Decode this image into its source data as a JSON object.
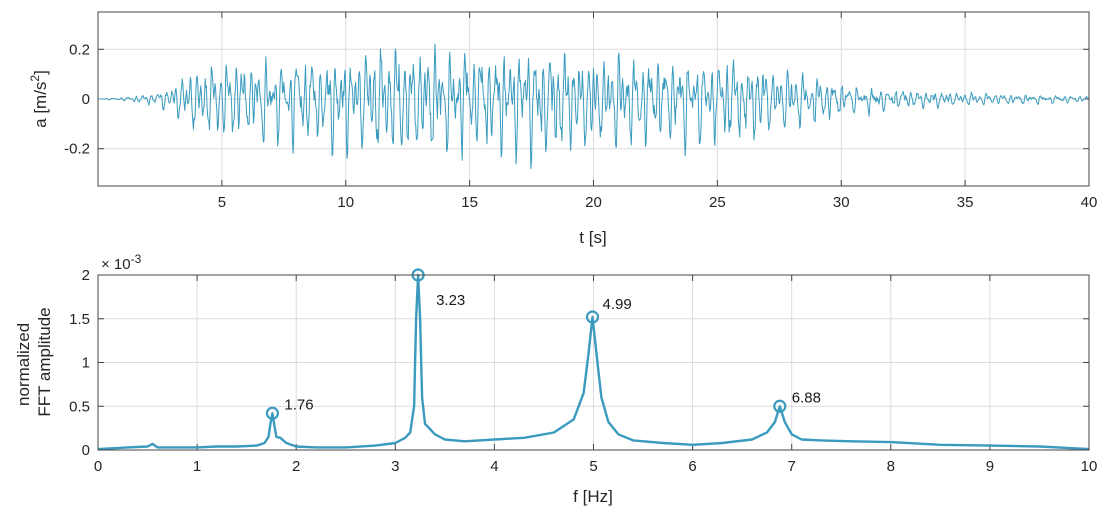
{
  "colors": {
    "series": "#3a9bbf",
    "grid": "#dcdcdc",
    "axis": "#444444",
    "background": "#ffffff"
  },
  "chart_data": [
    {
      "type": "line",
      "title": "",
      "xlabel": "t [s]",
      "ylabel": "a [m/s",
      "ylabel_super": "2",
      "ylabel_close": "]",
      "xlim": [
        0,
        40
      ],
      "ylim": [
        -0.35,
        0.35
      ],
      "xticks": [
        5,
        10,
        15,
        20,
        25,
        30,
        35,
        40
      ],
      "xtick_labels": [
        "5",
        "10",
        "15",
        "20",
        "25",
        "30",
        "35",
        "40"
      ],
      "yticks": [
        -0.2,
        0,
        0.2
      ],
      "ytick_labels": [
        "-0.2",
        "0",
        "0.2"
      ],
      "grid": true,
      "series": [
        {
          "envelope": {
            "t": [
              0,
              1,
              2,
              3,
              3.5,
              5,
              8,
              10,
              12,
              14,
              16,
              18,
              20,
              22,
              24,
              26,
              28,
              30,
              32,
              35,
              40
            ],
            "amp": [
              0.0,
              0.004,
              0.012,
              0.03,
              0.07,
              0.09,
              0.1,
              0.11,
              0.13,
              0.12,
              0.12,
              0.13,
              0.11,
              0.1,
              0.1,
              0.1,
              0.07,
              0.04,
              0.025,
              0.015,
              0.008
            ]
          },
          "dominant_frequencies_hz": [
            1.76,
            3.23,
            4.99,
            6.88
          ]
        }
      ]
    },
    {
      "type": "line",
      "title": "",
      "xlabel": "f [Hz]",
      "ylabel_lines": [
        "normalized",
        "FFT amplitude"
      ],
      "exponent_label": "× 10",
      "exponent_super": "-3",
      "xlim": [
        0,
        10
      ],
      "ylim": [
        0,
        0.002
      ],
      "xticks": [
        0,
        1,
        2,
        3,
        4,
        5,
        6,
        7,
        8,
        9,
        10
      ],
      "xtick_labels": [
        "0",
        "1",
        "2",
        "3",
        "4",
        "5",
        "6",
        "7",
        "8",
        "9",
        "10"
      ],
      "yticks": [
        0,
        0.0005,
        0.001,
        0.0015,
        0.002
      ],
      "ytick_labels": [
        "0",
        "0.5",
        "1",
        "1.5",
        "2"
      ],
      "grid": true,
      "series": [
        {
          "x": [
            0,
            0.3,
            0.5,
            0.55,
            0.6,
            0.8,
            1.0,
            1.2,
            1.4,
            1.6,
            1.68,
            1.72,
            1.74,
            1.76,
            1.78,
            1.8,
            1.84,
            1.9,
            2.0,
            2.2,
            2.5,
            2.8,
            3.0,
            3.1,
            3.15,
            3.19,
            3.21,
            3.23,
            3.25,
            3.27,
            3.3,
            3.35,
            3.4,
            3.5,
            3.7,
            4.0,
            4.3,
            4.6,
            4.8,
            4.9,
            4.95,
            4.99,
            5.03,
            5.08,
            5.15,
            5.25,
            5.4,
            5.7,
            6.0,
            6.3,
            6.6,
            6.75,
            6.83,
            6.88,
            6.93,
            7.0,
            7.1,
            7.3,
            7.6,
            8.0,
            8.5,
            9.0,
            9.5,
            10.0
          ],
          "y": [
            1e-05,
            3e-05,
            4e-05,
            7e-05,
            3e-05,
            3e-05,
            3e-05,
            4e-05,
            4e-05,
            5e-05,
            8e-05,
            0.00015,
            0.0003,
            0.00042,
            0.00028,
            0.00015,
            0.00014,
            8e-05,
            4e-05,
            3e-05,
            3e-05,
            5e-05,
            8e-05,
            0.00014,
            0.0002,
            0.0005,
            0.0015,
            0.002,
            0.0015,
            0.0006,
            0.0003,
            0.00024,
            0.00018,
            0.00012,
            0.0001,
            0.00012,
            0.00014,
            0.0002,
            0.00035,
            0.00065,
            0.0011,
            0.00152,
            0.0011,
            0.0006,
            0.00032,
            0.00018,
            0.00011,
            8e-05,
            6e-05,
            8e-05,
            0.00012,
            0.0002,
            0.00032,
            0.0005,
            0.00032,
            0.00018,
            0.00012,
            0.00011,
            0.0001,
            9e-05,
            6e-05,
            5e-05,
            4e-05,
            1e-05
          ]
        }
      ],
      "peaks": [
        {
          "x": 1.76,
          "y": 0.00042,
          "label": "1.76"
        },
        {
          "x": 3.23,
          "y": 0.002,
          "label": "3.23"
        },
        {
          "x": 4.99,
          "y": 0.00152,
          "label": "4.99"
        },
        {
          "x": 6.88,
          "y": 0.0005,
          "label": "6.88"
        }
      ]
    }
  ]
}
